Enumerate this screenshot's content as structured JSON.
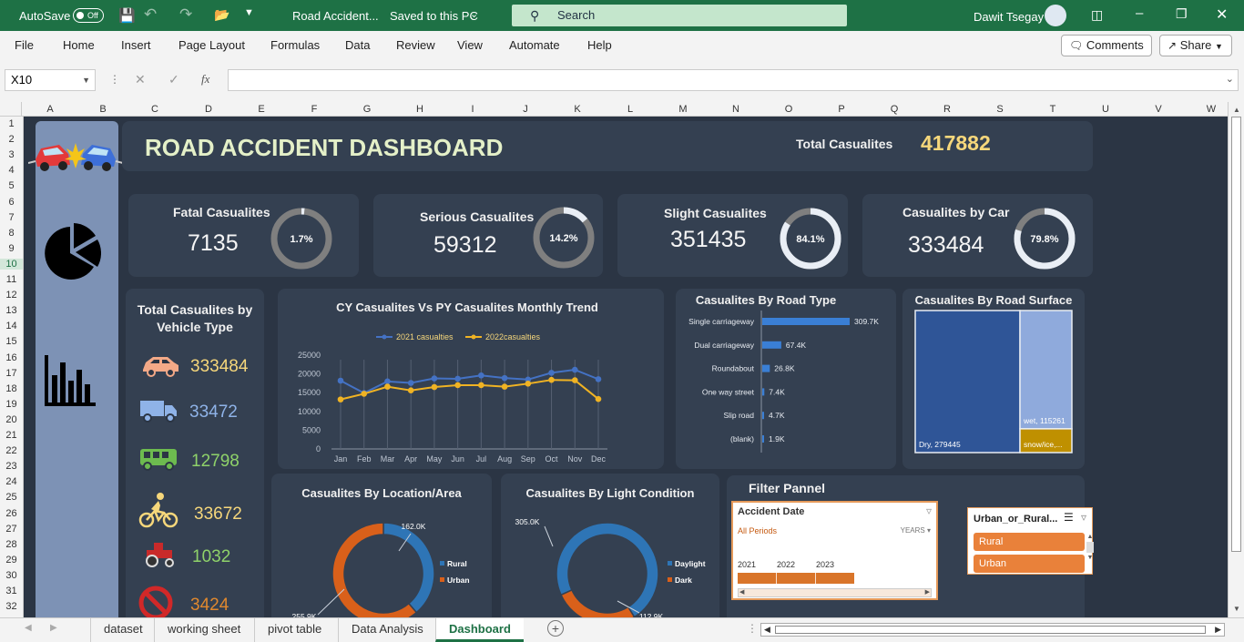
{
  "app": {
    "autosave_label": "AutoSave",
    "autosave_state": "Off",
    "doc_title": "Road Accident...",
    "save_status": "Saved to this PC",
    "search_placeholder": "Search",
    "user_name": "Dawit Tsegay"
  },
  "menu": {
    "items": [
      "File",
      "Home",
      "Insert",
      "Page Layout",
      "Formulas",
      "Data",
      "Review",
      "View",
      "Automate",
      "Help"
    ],
    "comments_label": "Comments",
    "share_label": "Share"
  },
  "formula_bar": {
    "name_box": "X10",
    "fx": "fx",
    "value": ""
  },
  "columns": [
    "A",
    "B",
    "C",
    "D",
    "E",
    "F",
    "G",
    "H",
    "I",
    "J",
    "K",
    "L",
    "M",
    "N",
    "O",
    "P",
    "Q",
    "R",
    "S",
    "T",
    "U",
    "V",
    "W"
  ],
  "rows": [
    "1",
    "2",
    "3",
    "4",
    "5",
    "6",
    "7",
    "8",
    "9",
    "10",
    "11",
    "12",
    "13",
    "14",
    "15",
    "16",
    "17",
    "18",
    "19",
    "20",
    "21",
    "22",
    "23",
    "24",
    "25",
    "26",
    "27",
    "28",
    "29",
    "30",
    "31",
    "32"
  ],
  "sheet_tabs": [
    "dataset",
    "working sheet",
    "pivot table",
    "Data Analysis",
    "Dashboard"
  ],
  "active_tab": "Dashboard",
  "dashboard": {
    "title": "ROAD ACCIDENT DASHBOARD",
    "total_label": "Total Casualites",
    "total_value": "417882",
    "kpis": [
      {
        "label": "Fatal Casualites",
        "value": "7135",
        "pct": "1.7%",
        "fraction": 0.017
      },
      {
        "label": "Serious Casualites",
        "value": "59312",
        "pct": "14.2%",
        "fraction": 0.142
      },
      {
        "label": "Slight Casualites",
        "value": "351435",
        "pct": "84.1%",
        "fraction": 0.841
      },
      {
        "label": "Casualites by Car",
        "value": "333484",
        "pct": "79.8%",
        "fraction": 0.798
      }
    ],
    "vehicle_panel": {
      "title": "Total Casualites by Vehicle Type",
      "items": [
        {
          "icon": "car-icon",
          "value": "333484",
          "color": "#f6d77b"
        },
        {
          "icon": "van-icon",
          "value": "33472",
          "color": "#8fb3e8"
        },
        {
          "icon": "bus-icon",
          "value": "12798",
          "color": "#8fd26a"
        },
        {
          "icon": "bicycle-icon",
          "value": "33672",
          "color": "#f6d77b"
        },
        {
          "icon": "tractor-icon",
          "value": "1032",
          "color": "#8fd26a"
        },
        {
          "icon": "no-entry-icon",
          "value": "3424",
          "color": "#e0882e"
        }
      ]
    },
    "filter": {
      "title": "Filter Pannel",
      "date_header": "Accident Date",
      "all_periods": "All Periods",
      "years_label": "YEARS",
      "years": [
        "2021",
        "2022",
        "2023"
      ],
      "urban_header": "Urban_or_Rural...",
      "urban_items": [
        "Rural",
        "Urban"
      ]
    }
  },
  "chart_data": [
    {
      "type": "line",
      "title": "CY Casualites Vs PY Casualites Monthly Trend",
      "categories": [
        "Jan",
        "Feb",
        "Mar",
        "Apr",
        "May",
        "Jun",
        "Jul",
        "Aug",
        "Sep",
        "Oct",
        "Nov",
        "Dec"
      ],
      "series": [
        {
          "name": "2021 casualties",
          "color": "#4472c4",
          "values": [
            18200,
            14900,
            18000,
            17600,
            18800,
            18700,
            19600,
            18900,
            18500,
            20300,
            21100,
            18600
          ]
        },
        {
          "name": "2022casualties",
          "color": "#f0b323",
          "values": [
            13200,
            14700,
            16600,
            15600,
            16500,
            17000,
            17000,
            16600,
            17400,
            18400,
            18300,
            13300
          ]
        }
      ],
      "ylim": [
        0,
        25000
      ],
      "yticks": [
        "0",
        "5000",
        "10000",
        "15000",
        "20000",
        "25000"
      ],
      "legend": "top"
    },
    {
      "type": "bar",
      "title": "Casualites By Road Type",
      "categories": [
        "Single carriageway",
        "Dual carriageway",
        "Roundabout",
        "One way street",
        "Slip road",
        "(blank)"
      ],
      "values": [
        309.7,
        67.4,
        26.8,
        7.4,
        4.7,
        1.9
      ],
      "labels": [
        "309.7K",
        "67.4K",
        "26.8K",
        "7.4K",
        "4.7K",
        "1.9K"
      ],
      "color": "#3a7fd5"
    },
    {
      "type": "treemap",
      "title": "Casualites By Road Surface",
      "items": [
        {
          "label": "Dry, 279445",
          "value": 279445,
          "color": "#2f5597"
        },
        {
          "label": "wet, 115261",
          "value": 115261,
          "color": "#8faadc"
        },
        {
          "label": "snow/ice,...",
          "value": 23176,
          "color": "#bf9000"
        }
      ]
    },
    {
      "type": "pie",
      "title": "Casualites By Location/Area",
      "series": [
        {
          "name": "Rural",
          "value": 162.0,
          "label": "162.0K",
          "color": "#2e75b6"
        },
        {
          "name": "Urban",
          "value": 255.9,
          "label": "255.9K",
          "color": "#d9601a"
        }
      ],
      "legend": "right"
    },
    {
      "type": "pie",
      "title": "Casualites By Light Condition",
      "series": [
        {
          "name": "Daylight",
          "value": 305.0,
          "label": "305.0K",
          "color": "#2e75b6"
        },
        {
          "name": "Dark",
          "value": 112.9,
          "label": "112.9K",
          "color": "#d9601a"
        }
      ],
      "legend": "right"
    }
  ]
}
